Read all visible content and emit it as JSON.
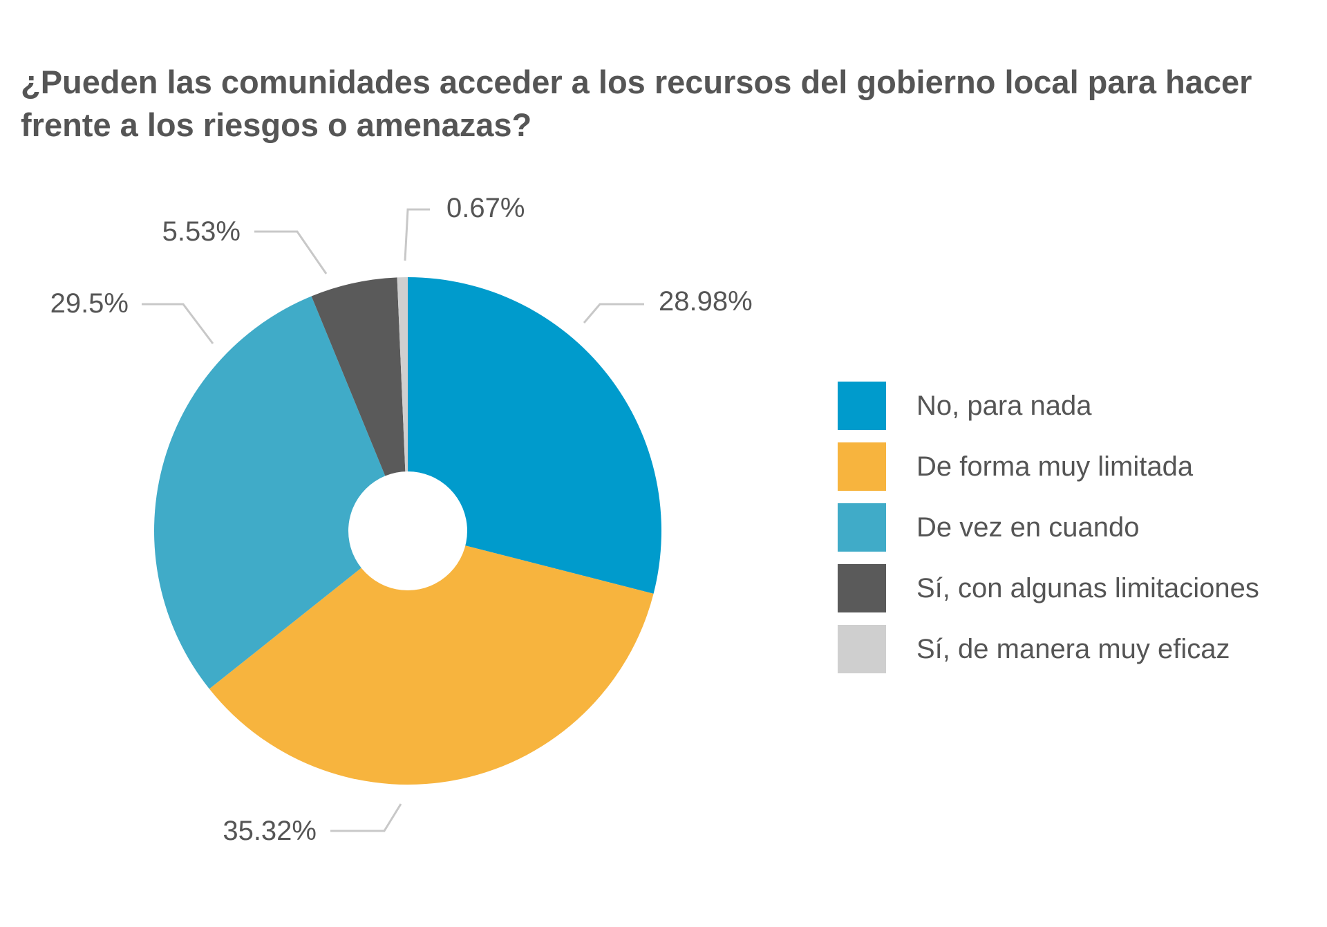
{
  "chart_data": {
    "type": "pie",
    "title": "¿Pueden las comunidades acceder a los recursos del gobierno local para hacer frente a los riesgos o amenazas?",
    "categories": [
      "No, para nada",
      "De forma muy limitada",
      "De vez en cuando",
      "Sí, con algunas limitaciones",
      "Sí, de manera muy eficaz"
    ],
    "values": [
      28.98,
      35.32,
      29.5,
      5.53,
      0.67
    ],
    "value_labels": [
      "28.98%",
      "35.32%",
      "29.5%",
      "5.53%",
      "0.67%"
    ],
    "colors": [
      "#009bcc",
      "#f7b43e",
      "#40abc8",
      "#5a5a5a",
      "#cfcfcf"
    ],
    "donut_hole": true,
    "start_angle": "12 o'clock",
    "direction": "clockwise",
    "legend_position": "right"
  }
}
